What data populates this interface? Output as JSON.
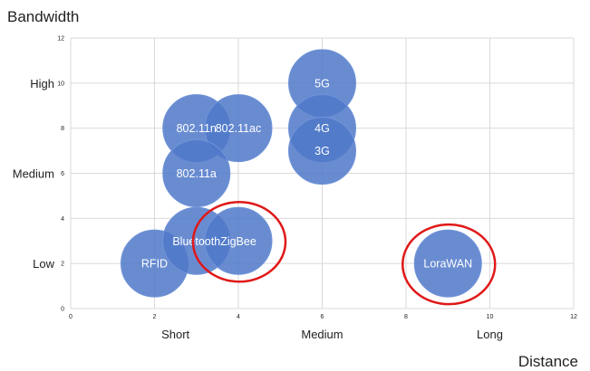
{
  "chart_data": {
    "type": "bubble",
    "xlabel": "Distance",
    "ylabel": "Bandwidth",
    "xlim": [
      0,
      12
    ],
    "ylim": [
      0,
      12
    ],
    "x_ticks": [
      0,
      2,
      4,
      6,
      8,
      10,
      12
    ],
    "y_ticks": [
      0,
      2,
      4,
      6,
      8,
      10,
      12
    ],
    "grid": true,
    "x_categories": [
      {
        "label": "Short",
        "x": 2.5
      },
      {
        "label": "Medium",
        "x": 6
      },
      {
        "label": "Long",
        "x": 10
      }
    ],
    "y_categories": [
      {
        "label": "High",
        "y": 10
      },
      {
        "label": "Medium",
        "y": 6
      },
      {
        "label": "Low",
        "y": 2
      }
    ],
    "points": [
      {
        "label": "RFID",
        "x": 2,
        "y": 2
      },
      {
        "label": "Bluetooth",
        "x": 3,
        "y": 3
      },
      {
        "label": "ZigBee",
        "x": 4,
        "y": 3
      },
      {
        "label": "802.11n",
        "x": 3,
        "y": 8
      },
      {
        "label": "802.11ac",
        "x": 4,
        "y": 8
      },
      {
        "label": "802.11a",
        "x": 3,
        "y": 6
      },
      {
        "label": "5G",
        "x": 6,
        "y": 10
      },
      {
        "label": "4G",
        "x": 6,
        "y": 8
      },
      {
        "label": "3G",
        "x": 6,
        "y": 7
      },
      {
        "label": "LoraWAN",
        "x": 9,
        "y": 2
      }
    ],
    "highlighted": [
      "ZigBee",
      "LoraWAN"
    ],
    "colors": {
      "bubble": "#4f78c9",
      "bubble_stroke": "#6f93d8",
      "highlight_ring": "#e01818",
      "grid": "#d9d9d9",
      "tick": "#8a8a8a"
    }
  }
}
